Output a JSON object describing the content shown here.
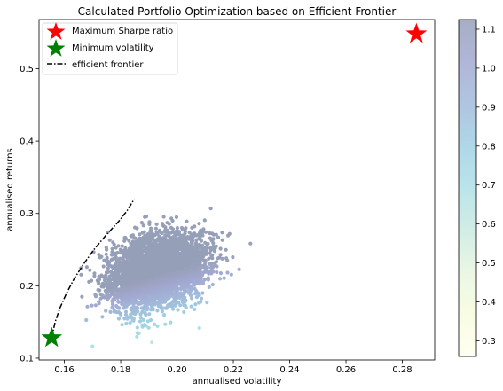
{
  "chart_data": {
    "type": "scatter",
    "title": "Calculated Portfolio Optimization based on Efficient Frontier",
    "xlabel": "annualised volatility",
    "ylabel": "annualised returns",
    "xlim": [
      0.151,
      0.2915
    ],
    "ylim": [
      0.0975,
      0.568
    ],
    "x_ticks": [
      "0.16",
      "0.18",
      "0.20",
      "0.22",
      "0.24",
      "0.26",
      "0.28"
    ],
    "y_ticks": [
      "0.1",
      "0.2",
      "0.3",
      "0.4",
      "0.5"
    ],
    "grid": false,
    "legend_position": "top-left",
    "colorbar": {
      "min": 0.26,
      "max": 1.125,
      "ticks": [
        "0.3",
        "0.4",
        "0.5",
        "0.6",
        "0.7",
        "0.8",
        "0.9",
        "1.0",
        "1.1"
      ],
      "colormap": "YlGnBu"
    },
    "simulated_portfolios": {
      "count": 4000,
      "center_volatility": 0.193,
      "center_return": 0.22,
      "volatility_spread": 0.0085,
      "return_spread": 0.025,
      "correlation": 0.3,
      "sharpe_min": 0.26,
      "sharpe_max": 1.125
    },
    "series": [
      {
        "name": "Maximum Sharpe ratio",
        "x": [
          0.285
        ],
        "y": [
          0.548
        ],
        "marker": "star",
        "color": "#ff0000"
      },
      {
        "name": "Minimum volatility",
        "x": [
          0.1555
        ],
        "y": [
          0.128
        ],
        "marker": "star",
        "color": "#008000"
      },
      {
        "name": "efficient frontier",
        "marker": "dash-dot",
        "color": "#000000",
        "x": [
          0.1555,
          0.1567,
          0.1585,
          0.1608,
          0.1635,
          0.1668,
          0.1705,
          0.1748,
          0.1795,
          0.1825,
          0.1848
        ],
        "y": [
          0.128,
          0.15,
          0.17,
          0.19,
          0.21,
          0.23,
          0.25,
          0.27,
          0.29,
          0.305,
          0.32
        ]
      }
    ]
  }
}
